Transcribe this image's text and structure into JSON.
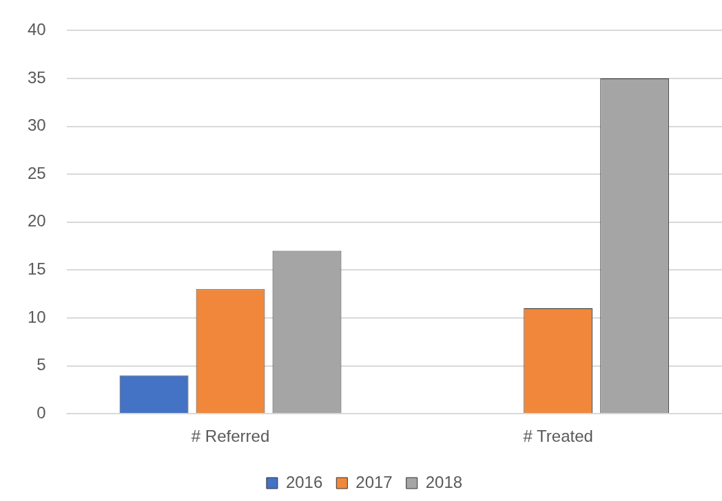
{
  "chart_data": {
    "type": "bar",
    "categories": [
      "# Referred",
      "# Treated"
    ],
    "series": [
      {
        "name": "2016",
        "color": "#4472c4",
        "values": [
          4,
          null
        ]
      },
      {
        "name": "2017",
        "color": "#f0873a",
        "values": [
          13,
          11
        ]
      },
      {
        "name": "2018",
        "color": "#a5a5a5",
        "values": [
          17,
          35
        ]
      }
    ],
    "ylim": [
      0,
      40
    ],
    "yticks": [
      0,
      5,
      10,
      15,
      20,
      25,
      30,
      35,
      40
    ],
    "grid": "y",
    "legend": "bottom"
  }
}
